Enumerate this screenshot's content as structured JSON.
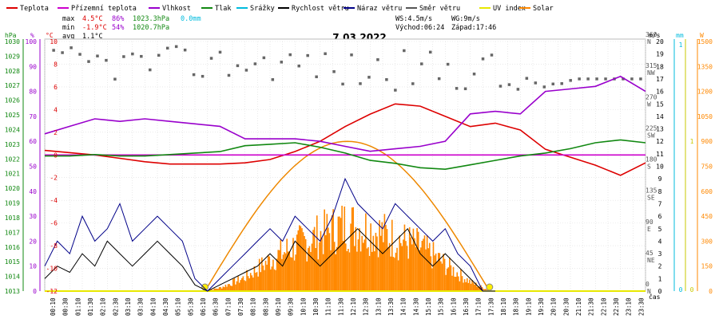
{
  "legend": [
    {
      "label": "Teplota",
      "color": "#dd0000"
    },
    {
      "label": "Přízemní teplota",
      "color": "#cc00cc"
    },
    {
      "label": "Vlhkost",
      "color": "#9900cc"
    },
    {
      "label": "Tlak",
      "color": "#118811"
    },
    {
      "label": "Srážky",
      "color": "#00bbdd"
    },
    {
      "label": "Rychlost větru",
      "color": "#000000"
    },
    {
      "label": "Náraz větru",
      "color": "#000088"
    },
    {
      "label": "Směr větru",
      "color": "#555555"
    },
    {
      "label": "UV index",
      "color": "#e8e800"
    },
    {
      "label": "Solar",
      "color": "#ff8800"
    }
  ],
  "stats": {
    "max_label": "max",
    "max_temp": "4.5°C",
    "max_hum": "86%",
    "max_press": "1023.3hPa",
    "rain": "0.0mm",
    "min_label": "min",
    "min_temp": "-1.9°C",
    "min_hum": "54%",
    "min_press": "1020.7hPa",
    "avg_label": "avg",
    "avg_temp": "1.1°C"
  },
  "wind_info": {
    "ws": "WS:4.5m/s",
    "wg": "WG:9m/s"
  },
  "sun_info": {
    "sunrise": "Východ:06:24",
    "sunset": "Západ:17:46"
  },
  "chart_data": {
    "type": "line",
    "title": "7.03.2022",
    "xlabel": "čas",
    "x_ticks": [
      "00:10",
      "00:30",
      "01:10",
      "01:30",
      "02:10",
      "02:30",
      "03:10",
      "03:30",
      "04:10",
      "04:30",
      "05:10",
      "05:30",
      "06:10",
      "06:30",
      "07:10",
      "07:30",
      "08:10",
      "08:30",
      "09:10",
      "09:30",
      "10:10",
      "10:30",
      "11:10",
      "11:30",
      "12:10",
      "12:30",
      "13:10",
      "13:30",
      "14:10",
      "14:30",
      "15:10",
      "15:30",
      "16:10",
      "16:30",
      "17:10",
      "17:30",
      "18:10",
      "18:30",
      "19:10",
      "19:30",
      "20:10",
      "20:30",
      "21:10",
      "21:30",
      "22:10",
      "22:30",
      "23:10",
      "23:30"
    ],
    "axes": {
      "hPa": {
        "label": "hPa",
        "ticks": [
          "1013",
          "1014",
          "1015",
          "1016",
          "1017",
          "1018",
          "1019",
          "1020",
          "1021",
          "1022",
          "1023",
          "1024",
          "1025",
          "1026",
          "1027",
          "1028",
          "1029",
          "1030"
        ],
        "ylim": [
          1013,
          1030
        ]
      },
      "pct": {
        "label": "%",
        "ticks": [
          "0",
          "10",
          "20",
          "30",
          "40",
          "50",
          "60",
          "70",
          "80",
          "90",
          "100"
        ],
        "ylim": [
          0,
          100
        ]
      },
      "degC": {
        "label": "°C",
        "ticks": [
          "-12",
          "-10",
          "-8",
          "-6",
          "-4",
          "-2",
          "0",
          "2",
          "4",
          "6",
          "8",
          "10"
        ],
        "ylim": [
          -12,
          10
        ]
      },
      "ms": {
        "label": "m/s",
        "ticks": [
          "0",
          "1",
          "2",
          "3",
          "4",
          "5",
          "6",
          "7",
          "8",
          "9",
          "10",
          "11",
          "12",
          "13",
          "14",
          "15",
          "16",
          "17",
          "18",
          "19",
          "20"
        ],
        "ylim": [
          0,
          20
        ]
      },
      "dir": {
        "ticks": [
          "N",
          "NE",
          "E",
          "SE",
          "S",
          "SW",
          "W",
          "NW",
          "N"
        ],
        "deg": [
          "0",
          "45",
          "90",
          "135",
          "180",
          "225",
          "270",
          "315",
          "360"
        ]
      },
      "mm": {
        "label": "mm",
        "ticks": [
          "0",
          "1"
        ],
        "ylim": [
          0,
          1
        ]
      },
      "uv": {
        "ticks": [
          "0",
          "1"
        ]
      },
      "W": {
        "label": "W",
        "ticks": [
          "0",
          "150",
          "300",
          "450",
          "600",
          "750",
          "900",
          "1050",
          "1200",
          "1350",
          "1500"
        ],
        "ylim": [
          0,
          1500
        ]
      }
    },
    "series": [
      {
        "name": "Teplota",
        "axis": "degC",
        "color": "#dd0000",
        "x": [
          0,
          1,
          2,
          3,
          4,
          5,
          6,
          7,
          8,
          9,
          10,
          11,
          12,
          13,
          14,
          15,
          16,
          17,
          18,
          19,
          20,
          21,
          22,
          23,
          24
        ],
        "y": [
          0.4,
          0.2,
          0.0,
          -0.3,
          -0.6,
          -0.8,
          -0.8,
          -0.8,
          -0.7,
          -0.4,
          0.3,
          1.2,
          2.5,
          3.6,
          4.5,
          4.3,
          3.4,
          2.5,
          2.8,
          2.2,
          0.5,
          -0.2,
          -0.9,
          -1.8,
          -0.7
        ]
      },
      {
        "name": "Přízemní teplota",
        "axis": "degC",
        "color": "#cc00cc",
        "x": [
          0,
          24
        ],
        "y": [
          0,
          0
        ]
      },
      {
        "name": "Vlhkost",
        "axis": "pct",
        "color": "#9900cc",
        "x": [
          0,
          1,
          2,
          3,
          4,
          5,
          6,
          7,
          8,
          9,
          10,
          11,
          12,
          13,
          14,
          15,
          16,
          17,
          18,
          19,
          20,
          21,
          22,
          23,
          24
        ],
        "y": [
          63,
          66,
          69,
          68,
          69,
          68,
          67,
          66,
          61,
          61,
          61,
          60,
          58,
          56,
          57,
          58,
          60,
          71,
          72,
          71,
          80,
          81,
          82,
          86,
          80
        ]
      },
      {
        "name": "Tlak",
        "axis": "hPa",
        "color": "#118811",
        "x": [
          0,
          1,
          2,
          3,
          4,
          5,
          6,
          7,
          8,
          9,
          10,
          11,
          12,
          13,
          14,
          15,
          16,
          17,
          18,
          19,
          20,
          21,
          22,
          23,
          24
        ],
        "y": [
          1022.2,
          1022.2,
          1022.3,
          1022.2,
          1022.2,
          1022.3,
          1022.4,
          1022.5,
          1022.9,
          1023.0,
          1023.1,
          1022.8,
          1022.4,
          1021.9,
          1021.7,
          1021.4,
          1021.3,
          1021.6,
          1021.9,
          1022.2,
          1022.4,
          1022.7,
          1023.1,
          1023.3,
          1023.1
        ]
      },
      {
        "name": "Rychlost větru",
        "axis": "ms",
        "color": "#000000",
        "x": [
          0,
          0.5,
          1,
          1.5,
          2,
          2.5,
          3,
          3.5,
          4,
          4.5,
          5,
          5.5,
          6,
          6.5,
          7,
          7.5,
          8,
          8.5,
          9,
          9.5,
          10,
          10.5,
          11,
          11.5,
          12,
          12.5,
          13,
          13.5,
          14,
          14.5,
          15,
          15.5,
          16,
          16.5,
          17,
          17.5,
          18
        ],
        "y": [
          1,
          2,
          1.5,
          3,
          2,
          4,
          3,
          2,
          3,
          4,
          3,
          2,
          0.5,
          0,
          0.5,
          1,
          1.5,
          2,
          3,
          2,
          4,
          3,
          2,
          3,
          4,
          5,
          4,
          3,
          4,
          5,
          3,
          2,
          3,
          2,
          1,
          0,
          0
        ]
      },
      {
        "name": "Náraz větru",
        "axis": "ms",
        "color": "#000088",
        "x": [
          0,
          0.5,
          1,
          1.5,
          2,
          2.5,
          3,
          3.5,
          4,
          4.5,
          5,
          5.5,
          6,
          6.5,
          7,
          7.5,
          8,
          8.5,
          9,
          9.5,
          10,
          10.5,
          11,
          11.5,
          12,
          12.5,
          13,
          13.5,
          14,
          14.5,
          15,
          15.5,
          16,
          16.5,
          17,
          17.5,
          18
        ],
        "y": [
          2,
          4,
          3,
          6,
          4,
          5,
          7,
          4,
          5,
          6,
          5,
          4,
          1,
          0,
          1,
          2,
          3,
          4,
          5,
          4,
          6,
          5,
          4,
          6,
          9,
          7,
          6,
          5,
          7,
          6,
          5,
          4,
          5,
          3,
          2,
          0,
          0
        ]
      },
      {
        "name": "Solar",
        "axis": "W",
        "color": "#ff8800",
        "x": [
          6.4,
          7,
          8,
          9,
          10,
          11,
          12,
          13,
          14,
          15,
          16,
          17,
          17.8
        ],
        "y": [
          0,
          20,
          80,
          180,
          260,
          320,
          380,
          350,
          300,
          250,
          150,
          50,
          0
        ]
      }
    ],
    "sun_curve": {
      "sunrise_h": 6.4,
      "sunset_h": 17.77,
      "peak_W": 900
    }
  }
}
